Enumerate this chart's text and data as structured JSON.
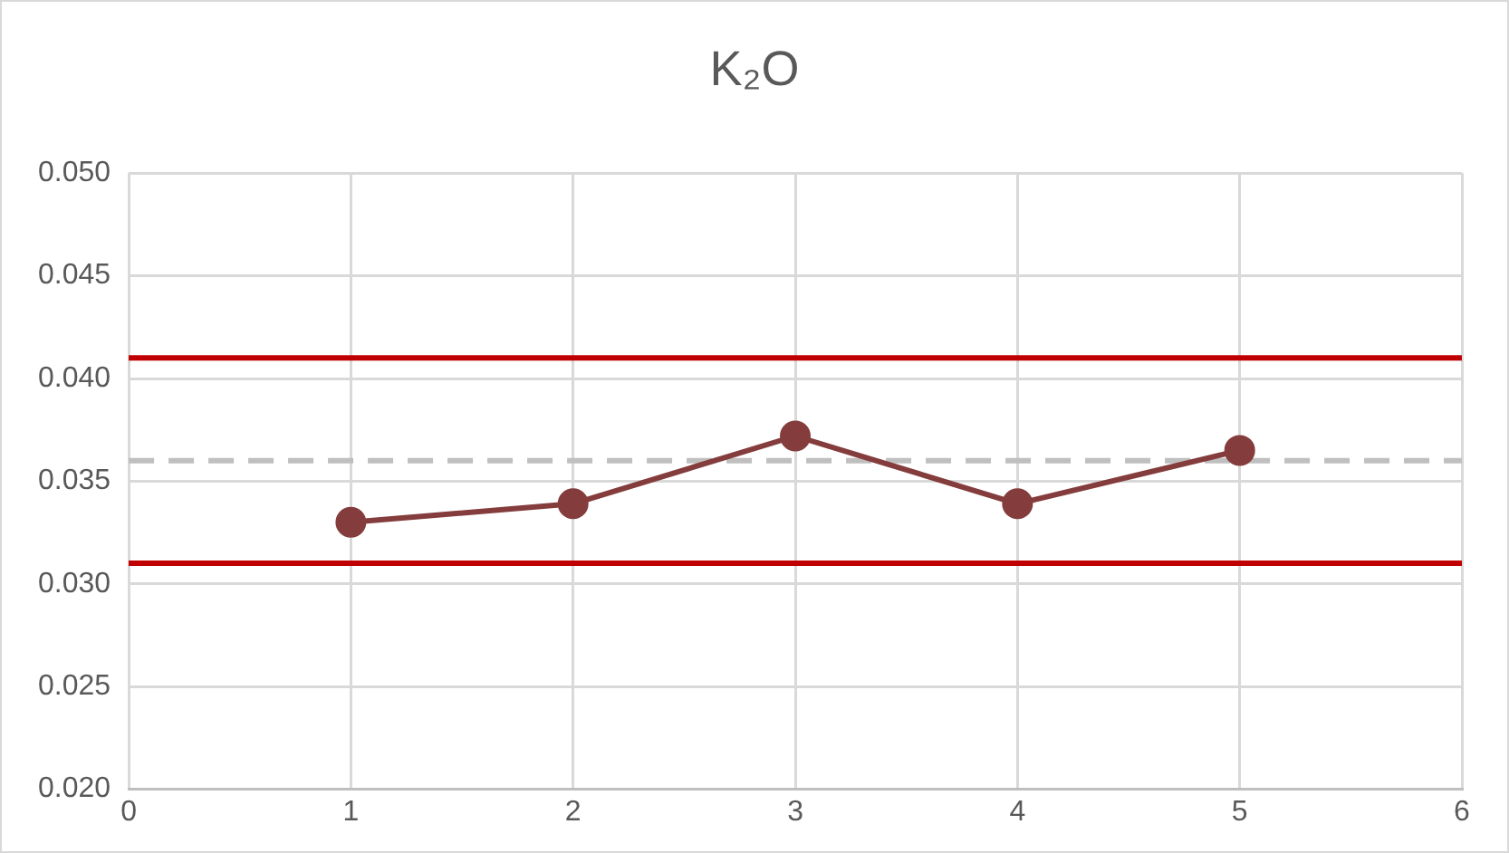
{
  "chart_data": {
    "type": "line",
    "title": "K₂O",
    "x": [
      1,
      2,
      3,
      4,
      5
    ],
    "series": [
      {
        "color": "#843c3c",
        "values": [
          0.033,
          0.0339,
          0.0372,
          0.0339,
          0.0365
        ]
      }
    ],
    "xlim": [
      0,
      6
    ],
    "xticks": [
      0,
      1,
      2,
      3,
      4,
      5,
      6
    ],
    "ylim": [
      0.02,
      0.05
    ],
    "yticks": [
      {
        "value": 0.02,
        "label": "0.020"
      },
      {
        "value": 0.025,
        "label": "0.025"
      },
      {
        "value": 0.03,
        "label": "0.030"
      },
      {
        "value": 0.035,
        "label": "0.035"
      },
      {
        "value": 0.04,
        "label": "0.040"
      },
      {
        "value": 0.045,
        "label": "0.045"
      },
      {
        "value": 0.05,
        "label": "0.050"
      }
    ],
    "ref_lines": [
      {
        "axis": "y",
        "value": 0.041,
        "color": "#c00000",
        "line_style": "solid"
      },
      {
        "axis": "y",
        "value": 0.031,
        "color": "#c00000",
        "line_style": "solid"
      },
      {
        "axis": "y",
        "value": 0.036,
        "color": "#bfbfbf",
        "line_style": "dashed"
      }
    ],
    "grid": true,
    "marker": "circle",
    "line_style": "solid",
    "legend": false
  }
}
